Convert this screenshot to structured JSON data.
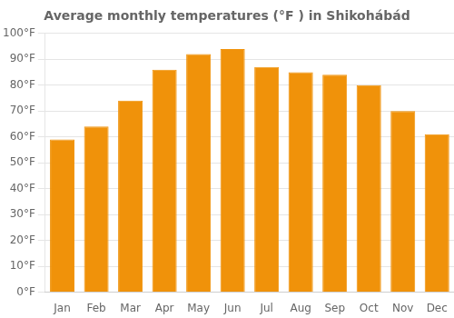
{
  "chart_data": {
    "type": "bar",
    "title": "Average monthly temperatures (°F ) in Shikohábád",
    "categories": [
      "Jan",
      "Feb",
      "Mar",
      "Apr",
      "May",
      "Jun",
      "Jul",
      "Aug",
      "Sep",
      "Oct",
      "Nov",
      "Dec"
    ],
    "values": [
      59,
      64,
      74,
      86,
      92,
      94,
      87,
      85,
      84,
      80,
      70,
      61
    ],
    "color": "#F0920A",
    "ylim": [
      0,
      100
    ],
    "yticks": [
      {
        "value": 0,
        "label": "0°F"
      },
      {
        "value": 10,
        "label": "10°F"
      },
      {
        "value": 20,
        "label": "20°F"
      },
      {
        "value": 30,
        "label": "30°F"
      },
      {
        "value": 40,
        "label": "40°F"
      },
      {
        "value": 50,
        "label": "50°F"
      },
      {
        "value": 60,
        "label": "60°F"
      },
      {
        "value": 70,
        "label": "70°F"
      },
      {
        "value": 80,
        "label": "80°F"
      },
      {
        "value": 90,
        "label": "90°F"
      },
      {
        "value": 100,
        "label": "100°F"
      }
    ],
    "grid": true
  }
}
